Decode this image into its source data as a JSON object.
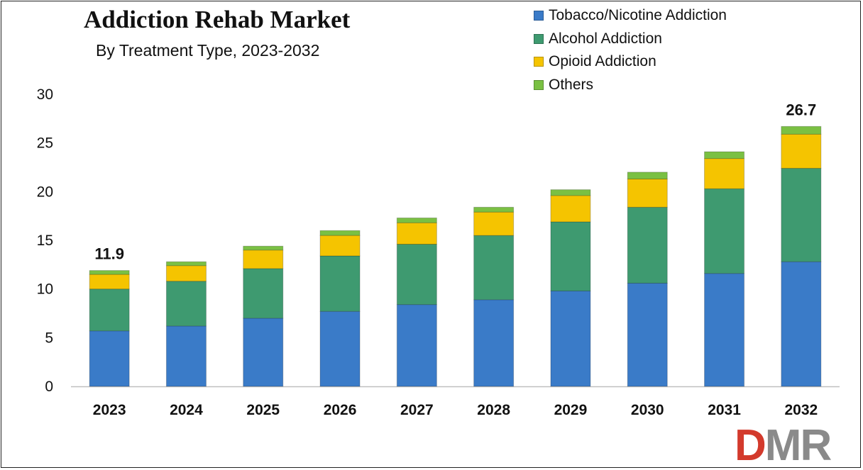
{
  "title": "Addiction Rehab Market",
  "subtitle": "By Treatment Type, 2023-2032",
  "colors": {
    "tobacco": "#3a7bc8",
    "alcohol": "#3e9a70",
    "opioid": "#f5c400",
    "others": "#7ac043",
    "axis": "#bfbfbf",
    "text": "#111111"
  },
  "legend": [
    {
      "label": "Tobacco/Nicotine Addiction",
      "color": "#3a7bc8"
    },
    {
      "label": "Alcohol Addiction",
      "color": "#3e9a70"
    },
    {
      "label": "Opioid Addiction",
      "color": "#f5c400"
    },
    {
      "label": "Others",
      "color": "#7ac043"
    }
  ],
  "logo": {
    "letters": [
      "D",
      "M",
      "R"
    ],
    "colors": [
      "#d33a2c",
      "#8a8a8a",
      "#8a8a8a"
    ]
  },
  "chart_data": {
    "type": "bar",
    "stacked": true,
    "categories": [
      "2023",
      "2024",
      "2025",
      "2026",
      "2027",
      "2028",
      "2029",
      "2030",
      "2031",
      "2032"
    ],
    "series": [
      {
        "name": "Tobacco/Nicotine Addiction",
        "values": [
          5.7,
          6.2,
          7.0,
          7.7,
          8.4,
          8.9,
          9.8,
          10.6,
          11.6,
          12.8
        ]
      },
      {
        "name": "Alcohol Addiction",
        "values": [
          4.3,
          4.6,
          5.1,
          5.7,
          6.2,
          6.6,
          7.1,
          7.8,
          8.7,
          9.6
        ]
      },
      {
        "name": "Opioid Addiction",
        "values": [
          1.5,
          1.6,
          1.9,
          2.1,
          2.2,
          2.4,
          2.7,
          2.9,
          3.1,
          3.5
        ]
      },
      {
        "name": "Others",
        "values": [
          0.4,
          0.4,
          0.4,
          0.5,
          0.5,
          0.5,
          0.6,
          0.7,
          0.7,
          0.8
        ]
      }
    ],
    "data_labels": [
      {
        "category": "2023",
        "text": "11.9"
      },
      {
        "category": "2032",
        "text": "26.7"
      }
    ],
    "ylim": [
      0,
      30
    ],
    "yticks": [
      0,
      5,
      10,
      15,
      20,
      25,
      30
    ],
    "xlabel": "",
    "ylabel": "",
    "grid": false,
    "legend_position": "top-right"
  }
}
